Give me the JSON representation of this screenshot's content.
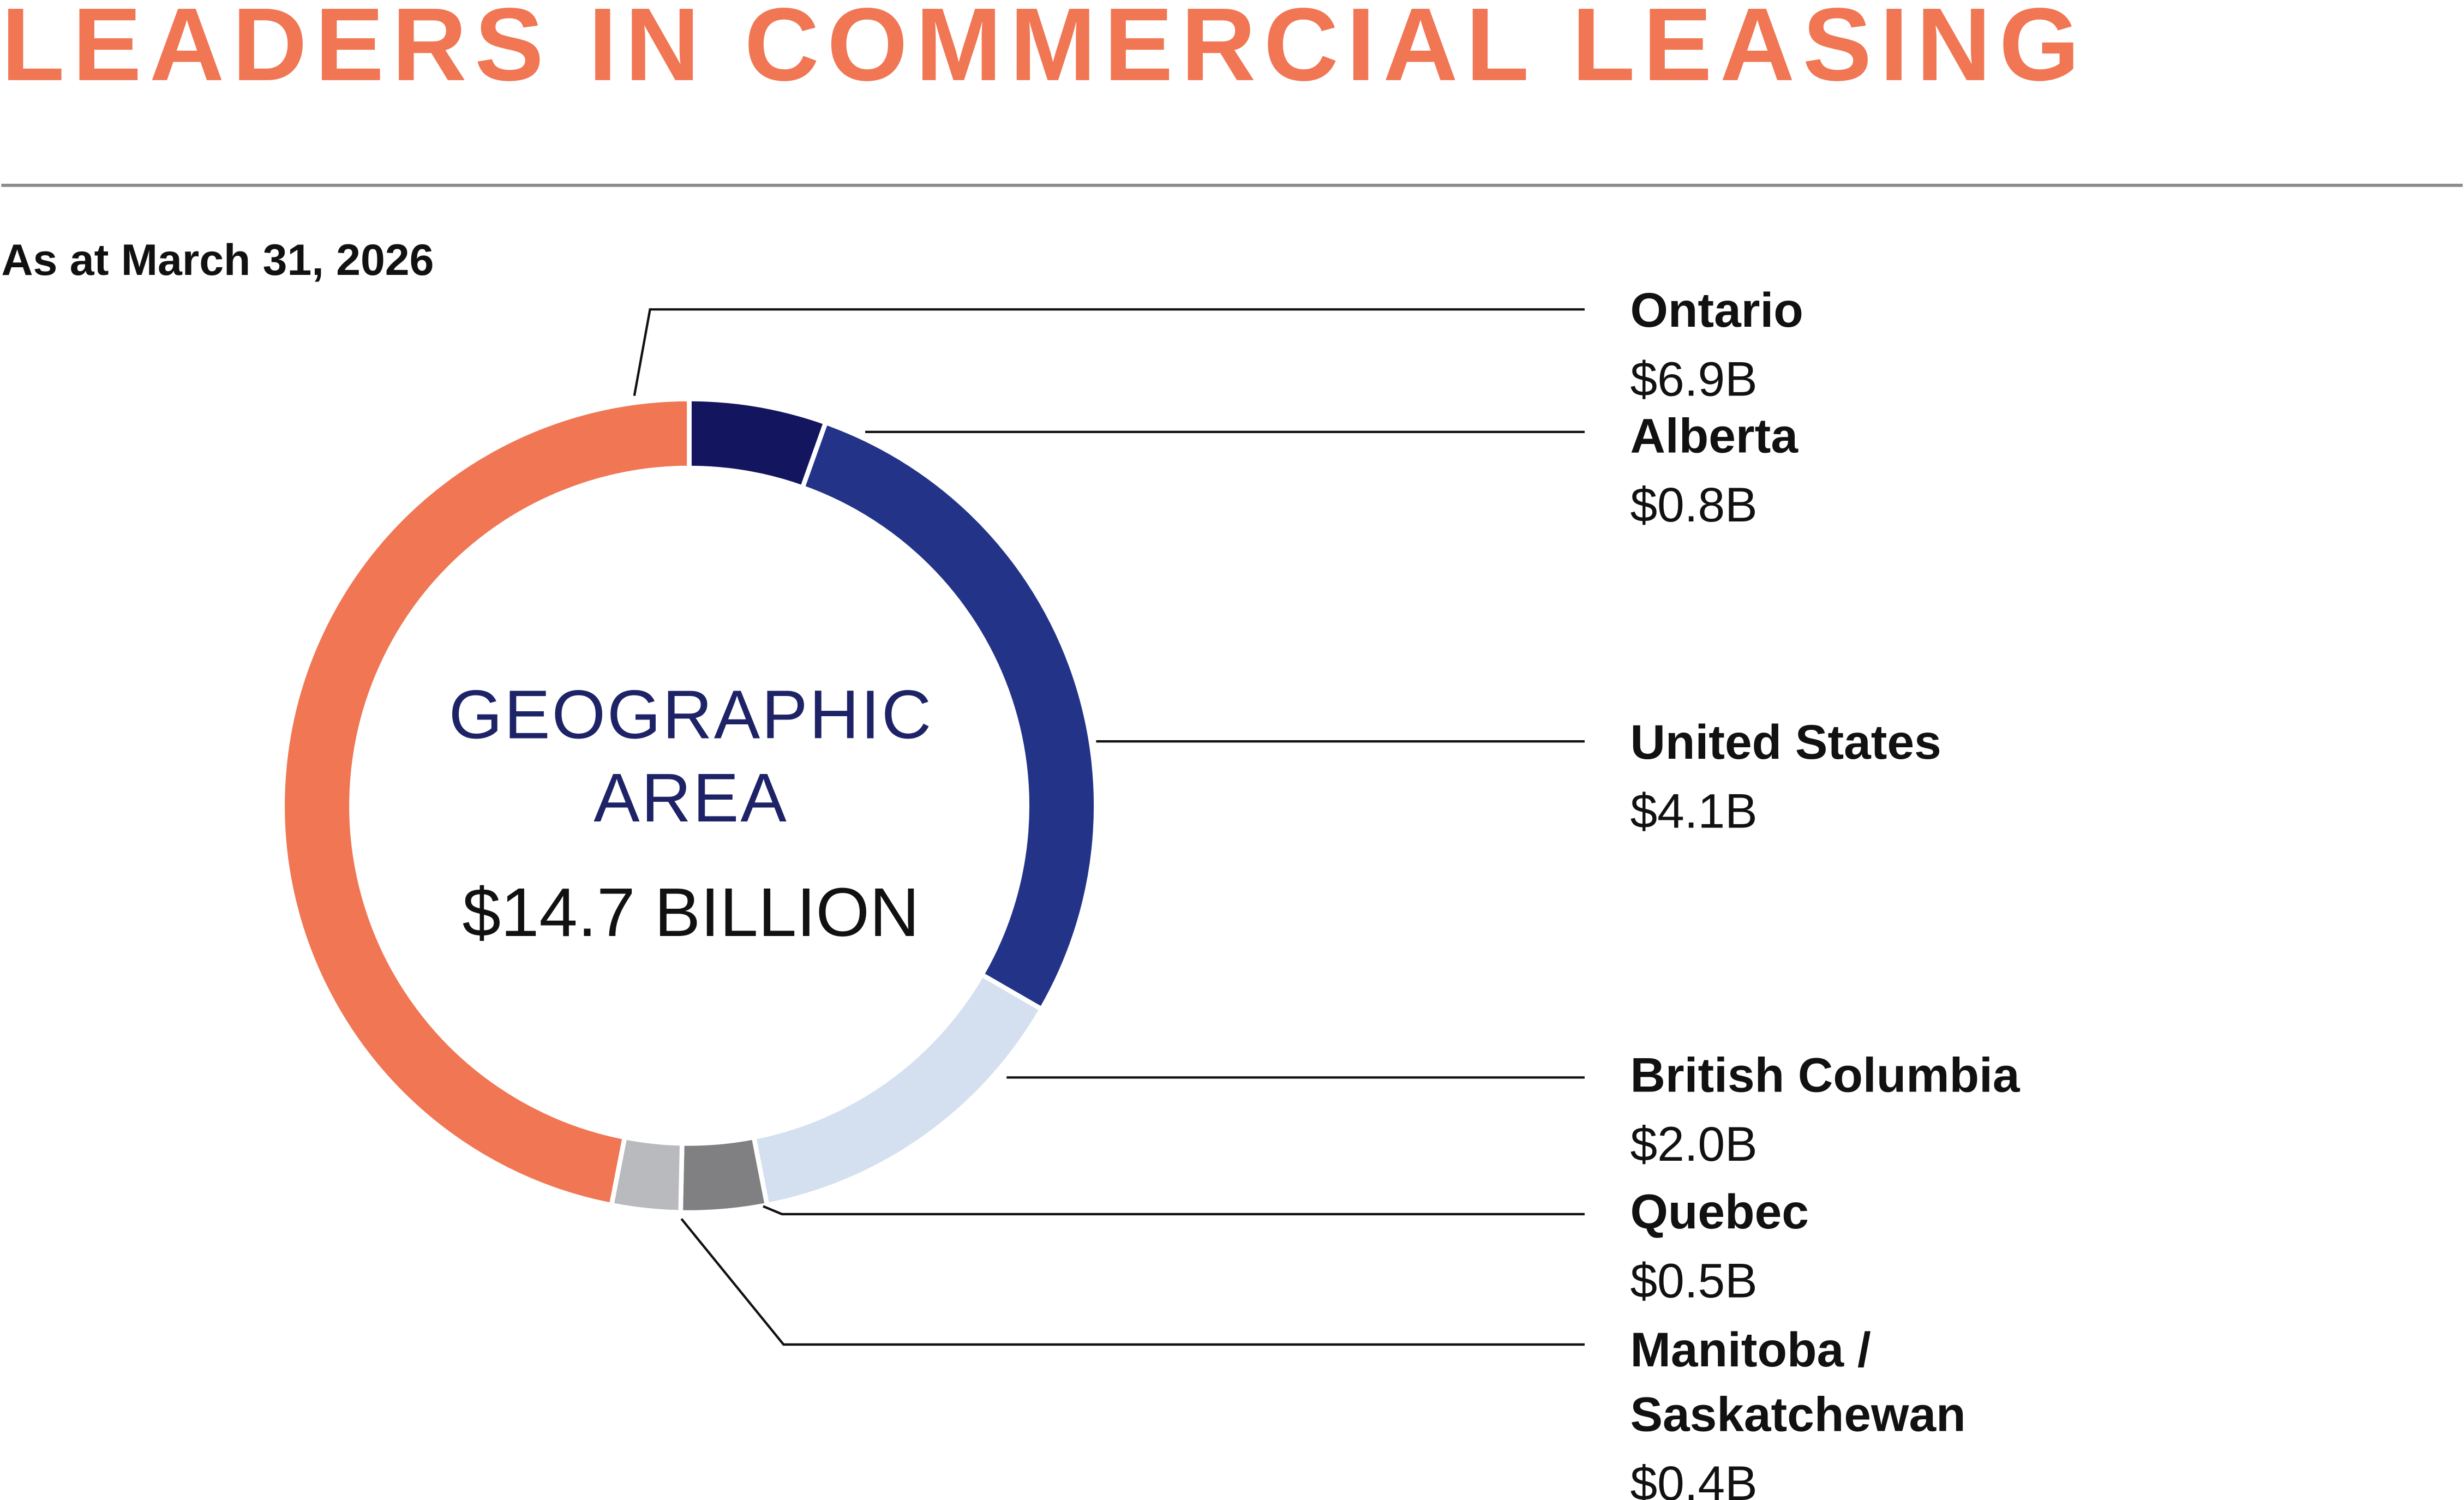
{
  "chart_data": {
    "type": "donut",
    "title": "LEADERS IN COMMERCIAL LEASING",
    "subtitle": "As at March 31, 2026",
    "center_text": [
      "GEOGRAPHIC",
      "AREA",
      "$14.7 BILLION"
    ],
    "categories": [
      "Ontario",
      "Alberta",
      "United States",
      "British Columbia",
      "Quebec",
      "Manitoba /\nSaskatchewan"
    ],
    "values": [
      6.9,
      0.8,
      4.1,
      2.0,
      0.5,
      0.4
    ],
    "value_labels": [
      "$6.9B",
      "$0.8B",
      "$4.1B",
      "$2.0B",
      "$0.5B",
      "$0.4B"
    ],
    "colors": [
      "#f07654",
      "#13165e",
      "#233488",
      "#d4e0f0",
      "#808083",
      "#b8babd"
    ]
  }
}
